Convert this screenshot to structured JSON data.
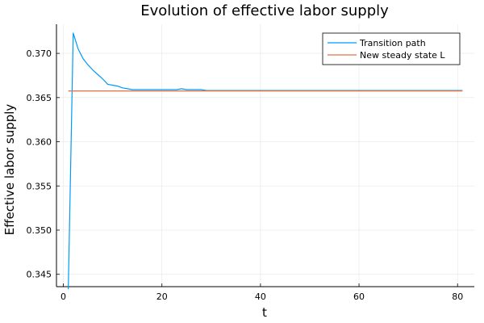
{
  "chart_data": {
    "type": "line",
    "title": "Evolution of effective labor supply",
    "xlabel": "t",
    "ylabel": "Effective labor supply",
    "xlim": [
      -1.4,
      83.4
    ],
    "ylim": [
      0.3436,
      0.3733
    ],
    "xticks": [
      0,
      20,
      40,
      60,
      80
    ],
    "yticks": [
      0.345,
      0.35,
      0.355,
      0.36,
      0.365,
      0.37
    ],
    "xtick_labels": [
      "0",
      "20",
      "40",
      "60",
      "80"
    ],
    "ytick_labels": [
      "0.345",
      "0.350",
      "0.355",
      "0.360",
      "0.365",
      "0.370"
    ],
    "grid": true,
    "legend": "top-right",
    "series": [
      {
        "name": "Transition path",
        "color": "#009AFA",
        "x": [
          1,
          2,
          3,
          4,
          5,
          6,
          7,
          8,
          9,
          10,
          11,
          12,
          13,
          14,
          15,
          16,
          17,
          18,
          19,
          20,
          21,
          22,
          23,
          24,
          25,
          26,
          27,
          28,
          29,
          30,
          35,
          40,
          45,
          50,
          55,
          60,
          65,
          70,
          75,
          80,
          81
        ],
        "y": [
          0.3433,
          0.3723,
          0.3705,
          0.3694,
          0.3687,
          0.3681,
          0.3676,
          0.3671,
          0.3665,
          0.3664,
          0.3663,
          0.3661,
          0.366,
          0.3659,
          0.3659,
          0.3659,
          0.3659,
          0.3659,
          0.3659,
          0.3659,
          0.3659,
          0.3659,
          0.3659,
          0.366,
          0.3659,
          0.3659,
          0.3659,
          0.3659,
          0.3658,
          0.3658,
          0.3658,
          0.3658,
          0.3658,
          0.3658,
          0.3658,
          0.3658,
          0.3658,
          0.3658,
          0.3658,
          0.3658,
          0.3658
        ]
      },
      {
        "name": "New steady state L",
        "color": "#E26F46",
        "x": [
          1,
          81
        ],
        "y": [
          0.36575,
          0.36575
        ]
      }
    ]
  }
}
